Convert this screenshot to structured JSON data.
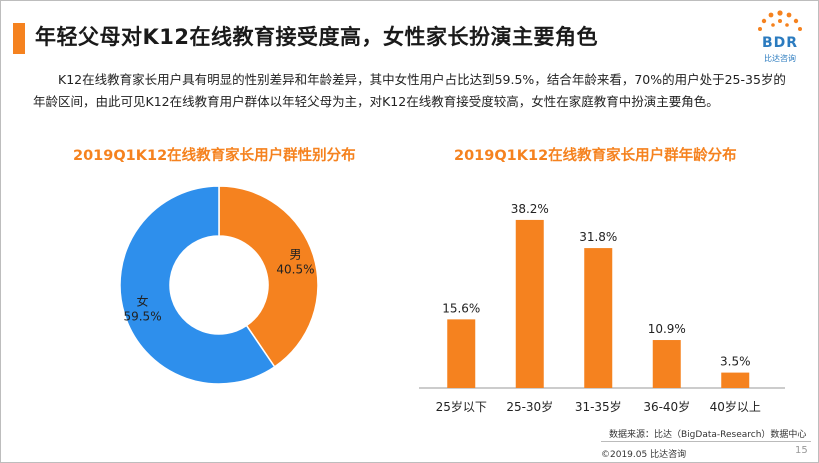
{
  "header": {
    "title": "年轻父母对K12在线教育接受度高，女性家长扮演主要角色",
    "logo_text": "BDR",
    "logo_sub": "比达咨询"
  },
  "intro": {
    "text": "K12在线教育家长用户具有明显的性别差异和年龄差异，其中女性用户占比达到59.5%，结合年龄来看，70%的用户处于25-35岁的年龄区间，由此可见K12在线教育用户群体以年轻父母为主，对K12在线教育接受度较高，女性在家庭教育中扮演主要角色。"
  },
  "chart_data": [
    {
      "type": "pie",
      "title": "2019Q1K12在线教育家长用户群性别分布",
      "donut": true,
      "slices": [
        {
          "label": "男",
          "value": 40.5,
          "display": "40.5%",
          "color": "#f5821f"
        },
        {
          "label": "女",
          "value": 59.5,
          "display": "59.5%",
          "color": "#2e8fec"
        }
      ]
    },
    {
      "type": "bar",
      "title": "2019Q1K12在线教育家长用户群年龄分布",
      "categories": [
        "25岁以下",
        "25-30岁",
        "31-35岁",
        "36-40岁",
        "40岁以上"
      ],
      "values": [
        15.6,
        38.2,
        31.8,
        10.9,
        3.5
      ],
      "labels": [
        "15.6%",
        "38.2%",
        "31.8%",
        "10.9%",
        "3.5%"
      ],
      "color": "#f5821f",
      "ylim": [
        0,
        40
      ]
    }
  ],
  "footer": {
    "source": "数据来源：比达（BigData-Research）数据中心",
    "copyright": "©2019.05 比达咨询",
    "page_number": "15"
  }
}
